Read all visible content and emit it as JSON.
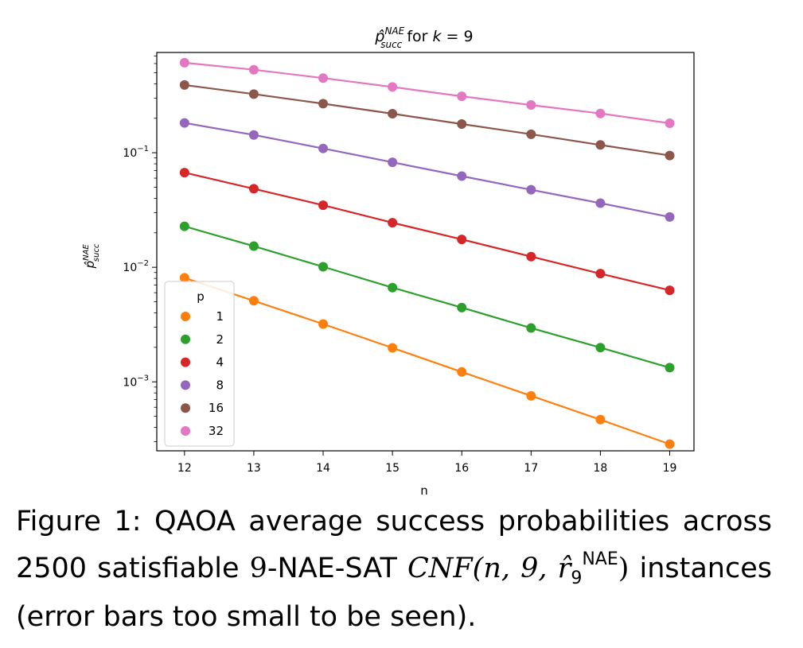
{
  "chart_data": {
    "type": "line",
    "title": {
      "base": "p̂",
      "sup": "NAE",
      "sub": "succ",
      "rest": " for ",
      "k": "k",
      "eq": " = 9"
    },
    "xlabel": "n",
    "ylabel": {
      "base": "p̂",
      "sup": "NAE",
      "sub": "succ"
    },
    "yscale": "log",
    "ylim": [
      0.00025,
      0.75
    ],
    "xlim": [
      11.6,
      19.35
    ],
    "x": [
      12,
      13,
      14,
      15,
      16,
      17,
      18,
      19
    ],
    "x_ticks": [
      "12",
      "13",
      "14",
      "15",
      "16",
      "17",
      "18",
      "19"
    ],
    "y_ticks": [
      {
        "value": 0.1,
        "base": "10",
        "exp": "−1"
      },
      {
        "value": 0.01,
        "base": "10",
        "exp": "−2"
      },
      {
        "value": 0.001,
        "base": "10",
        "exp": "−3"
      }
    ],
    "legend": {
      "title": "p",
      "placement": "lower-left"
    },
    "series": [
      {
        "name": "1",
        "color": "#ff7f0e",
        "values": [
          0.0081,
          0.0051,
          0.0032,
          0.00198,
          0.00122,
          0.000755,
          0.000468,
          0.000286
        ]
      },
      {
        "name": "2",
        "color": "#2ca02c",
        "values": [
          0.0228,
          0.0153,
          0.0101,
          0.00665,
          0.00445,
          0.00295,
          0.00199,
          0.00133
        ]
      },
      {
        "name": "4",
        "color": "#d62728",
        "values": [
          0.067,
          0.0485,
          0.0348,
          0.0245,
          0.0175,
          0.0124,
          0.0088,
          0.0063
        ]
      },
      {
        "name": "8",
        "color": "#9467bd",
        "values": [
          0.182,
          0.143,
          0.109,
          0.0825,
          0.0625,
          0.0475,
          0.0363,
          0.0275
        ]
      },
      {
        "name": "16",
        "color": "#8c564b",
        "values": [
          0.39,
          0.325,
          0.268,
          0.219,
          0.178,
          0.145,
          0.117,
          0.0945
        ]
      },
      {
        "name": "32",
        "color": "#e377c2",
        "values": [
          0.61,
          0.53,
          0.448,
          0.375,
          0.311,
          0.261,
          0.22,
          0.181
        ]
      }
    ]
  },
  "caption": {
    "line1": "Figure 1:  QAOA average success probabilities across",
    "line2_pre": "2500 satisfiable ",
    "line2_k": "9",
    "line2_mid": "-NAE-SAT ",
    "line2_math": "CNF",
    "line2_args": "(n, 9, r̂",
    "line2_sub": "9",
    "line2_sup": "NAE",
    "line2_close": ")",
    "line2_post": " instances",
    "line3": "(error bars too small to be seen)."
  }
}
